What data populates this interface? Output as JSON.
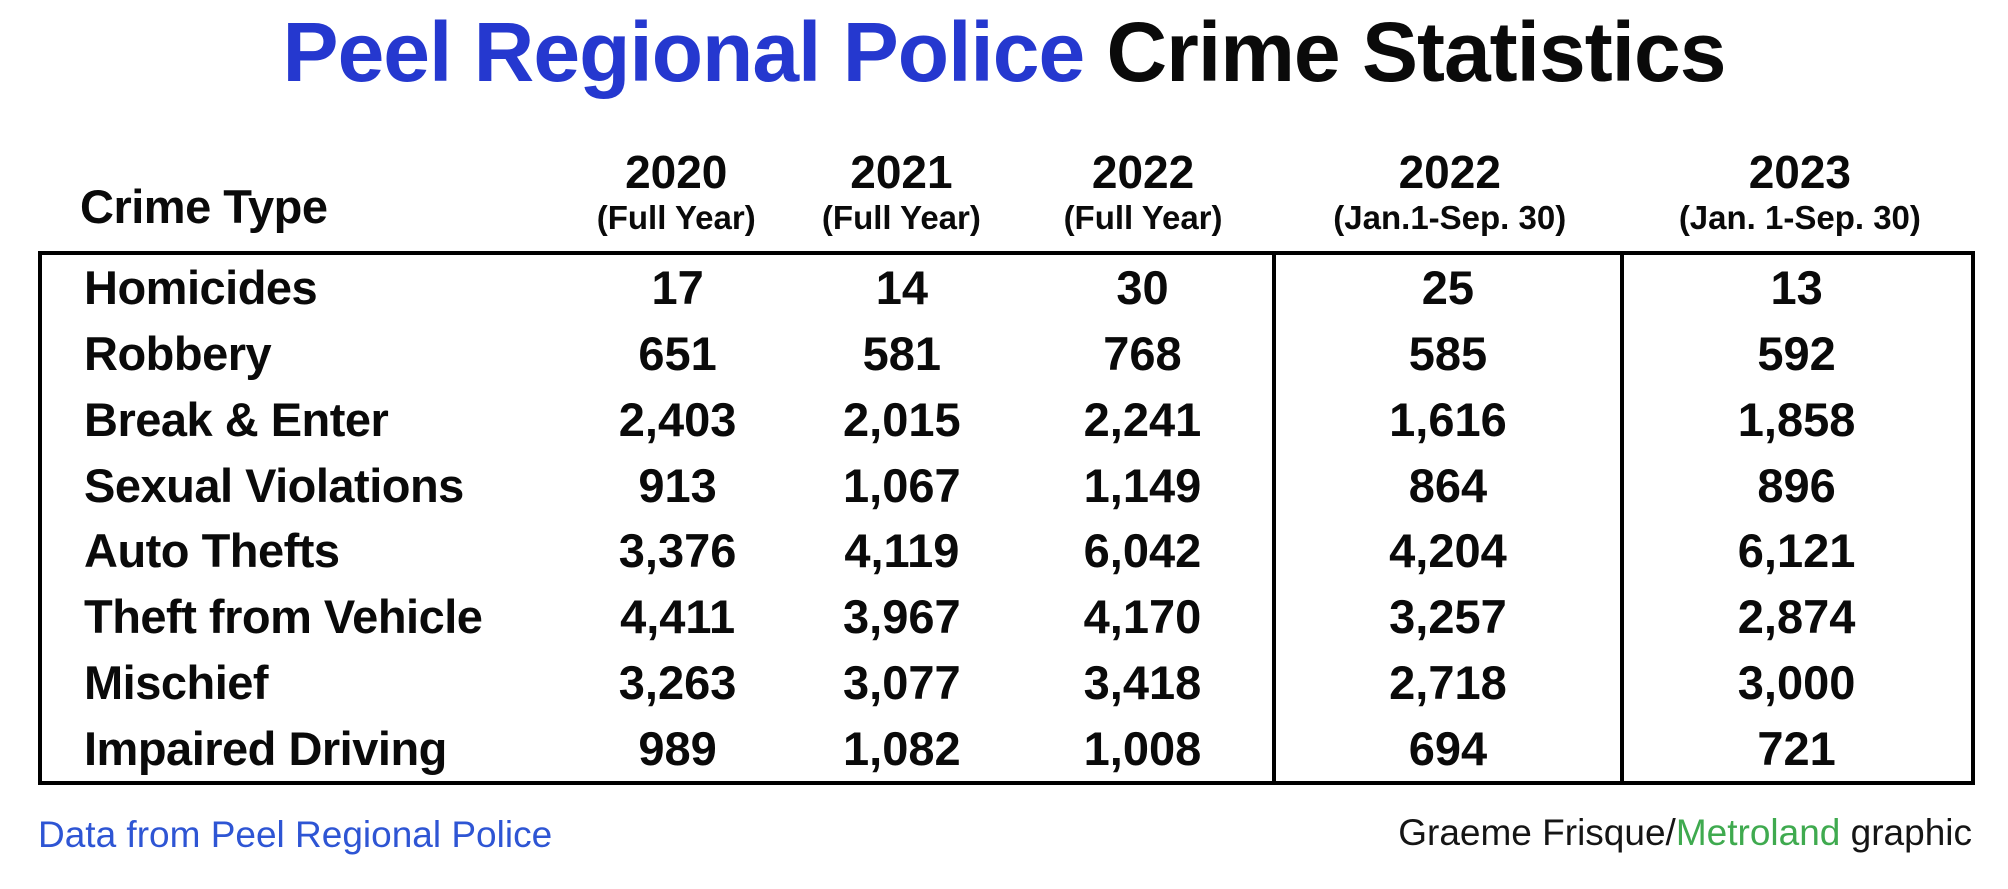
{
  "title": {
    "highlight": "Peel Regional Police",
    "rest": "Crime Statistics"
  },
  "chart_data": {
    "type": "table",
    "title": "Peel Regional Police Crime Statistics",
    "row_header": "Crime Type",
    "columns": [
      {
        "year": "2020",
        "period": "(Full Year)"
      },
      {
        "year": "2021",
        "period": "(Full Year)"
      },
      {
        "year": "2022",
        "period": "(Full Year)"
      },
      {
        "year": "2022",
        "period": "(Jan.1-Sep. 30)"
      },
      {
        "year": "2023",
        "period": "(Jan. 1-Sep. 30)"
      }
    ],
    "rows": [
      {
        "label": "Homicides",
        "values": [
          "17",
          "14",
          "30",
          "25",
          "13"
        ]
      },
      {
        "label": "Robbery",
        "values": [
          "651",
          "581",
          "768",
          "585",
          "592"
        ]
      },
      {
        "label": "Break & Enter",
        "values": [
          "2,403",
          "2,015",
          "2,241",
          "1,616",
          "1,858"
        ]
      },
      {
        "label": "Sexual Violations",
        "values": [
          "913",
          "1,067",
          "1,149",
          "864",
          "896"
        ]
      },
      {
        "label": "Auto Thefts",
        "values": [
          "3,376",
          "4,119",
          "6,042",
          "4,204",
          "6,121"
        ]
      },
      {
        "label": "Theft from Vehicle",
        "values": [
          "4,411",
          "3,967",
          "4,170",
          "3,257",
          "2,874"
        ]
      },
      {
        "label": "Mischief",
        "values": [
          "3,263",
          "3,077",
          "3,418",
          "2,718",
          "3,000"
        ]
      },
      {
        "label": "Impaired Driving",
        "values": [
          "989",
          "1,082",
          "1,008",
          "694",
          "721"
        ]
      }
    ]
  },
  "footer": {
    "source": "Data from Peel Regional Police",
    "credit_prefix": "Graeme Frisque/",
    "credit_brand": "Metroland",
    "credit_suffix": " graphic"
  },
  "colors": {
    "title-blue": "#2538cf",
    "source-blue": "#2e55d4",
    "brand-green": "#3faa4f",
    "text-black": "#0a0a0a",
    "border-black": "#000000"
  }
}
